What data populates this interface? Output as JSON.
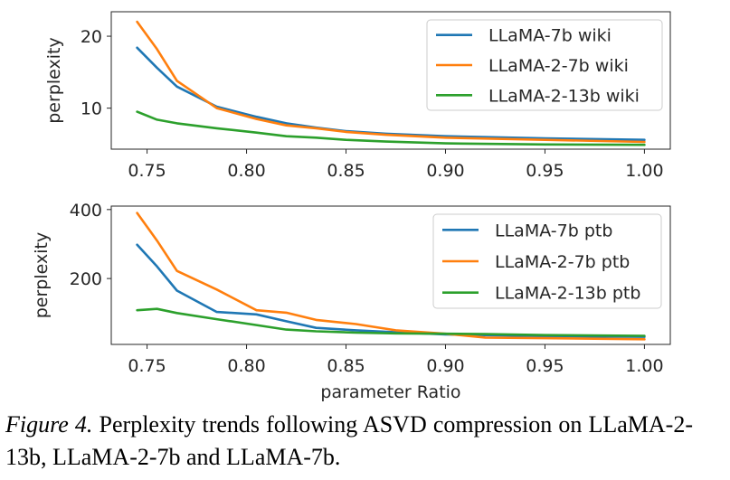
{
  "chart_data": [
    {
      "type": "line",
      "xlabel": "",
      "ylabel": "perplexity",
      "xlim": [
        0.732,
        1.013
      ],
      "ylim": [
        4.3,
        23.4
      ],
      "xticks": [
        0.75,
        0.8,
        0.85,
        0.9,
        0.95,
        1.0
      ],
      "xtick_labels": [
        "0.75",
        "0.80",
        "0.85",
        "0.90",
        "0.95",
        "1.00"
      ],
      "yticks": [
        10,
        20
      ],
      "ytick_labels": [
        "10",
        "20"
      ],
      "grid": false,
      "legend_position": "top-right",
      "x": [
        0.745,
        0.755,
        0.765,
        0.785,
        0.805,
        0.82,
        0.835,
        0.85,
        0.87,
        0.9,
        0.95,
        1.0
      ],
      "series": [
        {
          "name": "LLaMA-7b wiki",
          "color": "#1f77b4",
          "values": [
            18.4,
            15.6,
            13.0,
            10.2,
            8.8,
            7.9,
            7.3,
            6.8,
            6.45,
            6.1,
            5.8,
            5.6
          ]
        },
        {
          "name": "LLaMA-2-7b wiki",
          "color": "#ff7f0e",
          "values": [
            22.0,
            18.2,
            13.8,
            10.0,
            8.5,
            7.6,
            7.2,
            6.7,
            6.3,
            5.9,
            5.6,
            5.3
          ]
        },
        {
          "name": "LLaMA-2-13b wiki",
          "color": "#2ca02c",
          "values": [
            9.5,
            8.4,
            7.9,
            7.2,
            6.6,
            6.1,
            5.9,
            5.6,
            5.35,
            5.1,
            4.95,
            4.9
          ]
        }
      ]
    },
    {
      "type": "line",
      "xlabel": "parameter Ratio",
      "ylabel": "perplexity",
      "xlim": [
        0.732,
        1.013
      ],
      "ylim": [
        9,
        410
      ],
      "xticks": [
        0.75,
        0.8,
        0.85,
        0.9,
        0.95,
        1.0
      ],
      "xtick_labels": [
        "0.75",
        "0.80",
        "0.85",
        "0.90",
        "0.95",
        "1.00"
      ],
      "yticks": [
        200,
        400
      ],
      "ytick_labels": [
        "200",
        "400"
      ],
      "grid": false,
      "legend_position": "top-right",
      "x": [
        0.745,
        0.755,
        0.765,
        0.785,
        0.805,
        0.82,
        0.835,
        0.855,
        0.875,
        0.9,
        0.92,
        0.95,
        1.0
      ],
      "series": [
        {
          "name": "LLaMA-7b ptb",
          "color": "#1f77b4",
          "values": [
            298,
            235,
            165,
            103,
            96,
            76,
            57,
            50,
            44,
            38,
            36,
            33,
            31
          ]
        },
        {
          "name": "LLaMA-2-7b ptb",
          "color": "#ff7f0e",
          "values": [
            390,
            310,
            222,
            168,
            108,
            101,
            80,
            68,
            50,
            40,
            29,
            27,
            24
          ]
        },
        {
          "name": "LLaMA-2-13b ptb",
          "color": "#2ca02c",
          "values": [
            108,
            112,
            100,
            82,
            65,
            52,
            47,
            43,
            41,
            40,
            39,
            36,
            34
          ]
        }
      ]
    }
  ],
  "caption": {
    "label": "Figure 4.",
    "text": " Perplexity trends following ASVD compression on LLaMA-2-13b, LLaMA-2-7b and LLaMA-7b."
  }
}
